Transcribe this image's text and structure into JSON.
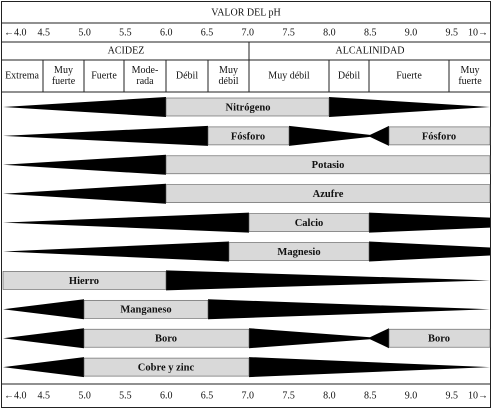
{
  "header": {
    "title": "VALOR DEL pH"
  },
  "scale_top": [
    "←4.0",
    "4.5",
    "5.0",
    "5.5",
    "6.0",
    "6.5",
    "7.0",
    "7.5",
    "8.0",
    "8.5",
    "9.0",
    "9.5",
    "10→"
  ],
  "groups": [
    "ACIDEZ",
    "ALCALINIDAD"
  ],
  "classes": [
    "Extrema",
    "Muy fuerte",
    "Fuerte",
    "Mode-rada",
    "Débil",
    "Muy débil",
    "Muy débil",
    "Débil",
    "Fuerte",
    "Muy fuerte"
  ],
  "rows": [
    [
      "Nitrógeno"
    ],
    [
      "Fósforo",
      "Fósforo"
    ],
    [
      "Potasio"
    ],
    [
      "Azufre"
    ],
    [
      "Calcio"
    ],
    [
      "Magnesio"
    ],
    [
      "Hierro"
    ],
    [
      "Manganeso"
    ],
    [
      "Boro",
      "Boro"
    ],
    [
      "Cobre y zinc"
    ]
  ],
  "scale_bottom": [
    "←4.0",
    "4.5",
    "5.0",
    "5.5",
    "6.0",
    "6.5",
    "7.0",
    "7.5",
    "8.0",
    "8.5",
    "9.0",
    "9.5",
    "10→"
  ]
}
